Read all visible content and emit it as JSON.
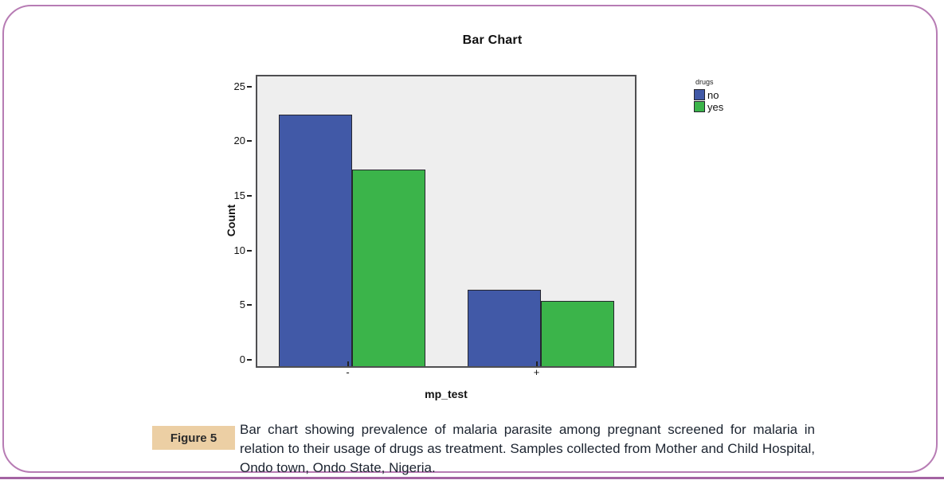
{
  "page": {
    "background": "#ffffff",
    "frame_border_color": "#b77cb4",
    "bottom_rule_color": "#a463a3"
  },
  "figure": {
    "label": "Figure 5",
    "label_bg": "#eccfa4",
    "caption": "Bar chart showing prevalence of malaria parasite among pregnant screened for malaria in relation to their usage of drugs as treatment. Samples collected from Mother and Child Hospital, Ondo town, Ondo State, Nigeria."
  },
  "chart_data": {
    "type": "bar",
    "title": "Bar Chart",
    "categories": [
      "-",
      "+"
    ],
    "series": [
      {
        "name": "no",
        "color": "#4159a7",
        "values": [
          23,
          7
        ]
      },
      {
        "name": "yes",
        "color": "#3bb44a",
        "values": [
          18,
          6
        ]
      }
    ],
    "xlabel": "mp_test",
    "ylabel": "Count",
    "ylim": [
      0,
      26.5
    ],
    "yticks": [
      0,
      5,
      10,
      15,
      20,
      25
    ],
    "legend_title": "drugs",
    "legend_position": "outside-top-right",
    "grid": false,
    "plot_background": "#eeeeee",
    "bar_border_color": "#26262e"
  }
}
